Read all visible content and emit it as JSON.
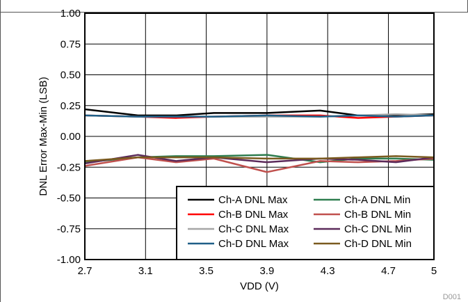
{
  "chart_data": {
    "type": "line",
    "xlabel": "VDD (V)",
    "ylabel": "DNL Error Max-Min (LSB)",
    "xlim": [
      2.7,
      5.0
    ],
    "ylim": [
      -1.0,
      1.0
    ],
    "xticks": [
      2.7,
      3.1,
      3.5,
      3.9,
      4.3,
      4.7,
      5
    ],
    "xtick_labels": [
      "2.7",
      "3.1",
      "3.5",
      "3.9",
      "4.3",
      "4.7",
      "5"
    ],
    "yticks": [
      -1.0,
      -0.75,
      -0.5,
      -0.25,
      0.0,
      0.25,
      0.5,
      0.75,
      1.0
    ],
    "ytick_labels": [
      "-1.00",
      "-0.75",
      "-0.50",
      "-0.25",
      "0.00",
      "0.25",
      "0.50",
      "0.75",
      "1.00"
    ],
    "grid": true,
    "legend_position": "bottom-right",
    "legend_columns": 2,
    "annotation": "D001",
    "x": [
      2.7,
      3.05,
      3.3,
      3.55,
      3.9,
      4.25,
      4.5,
      4.75,
      5.0
    ],
    "series": [
      {
        "name": "Ch-A DNL Max",
        "color": "#000000",
        "values": [
          0.22,
          0.17,
          0.17,
          0.19,
          0.19,
          0.21,
          0.17,
          0.17,
          0.18
        ]
      },
      {
        "name": "Ch-B DNL Max",
        "color": "#ff0000",
        "values": [
          0.17,
          0.16,
          0.15,
          0.16,
          0.17,
          0.17,
          0.15,
          0.16,
          0.17
        ]
      },
      {
        "name": "Ch-C DNL Max",
        "color": "#a6a6a6",
        "values": [
          0.17,
          0.16,
          0.16,
          0.16,
          0.16,
          0.16,
          0.17,
          0.18,
          0.17
        ]
      },
      {
        "name": "Ch-D DNL Max",
        "color": "#1f5f87",
        "values": [
          0.17,
          0.16,
          0.16,
          0.16,
          0.17,
          0.16,
          0.17,
          0.16,
          0.17
        ]
      },
      {
        "name": "Ch-A DNL Min",
        "color": "#2e7d4f",
        "values": [
          -0.21,
          -0.17,
          -0.16,
          -0.16,
          -0.15,
          -0.21,
          -0.18,
          -0.18,
          -0.19
        ]
      },
      {
        "name": "Ch-B DNL Min",
        "color": "#c0504d",
        "values": [
          -0.24,
          -0.17,
          -0.21,
          -0.18,
          -0.29,
          -0.2,
          -0.21,
          -0.2,
          -0.18
        ]
      },
      {
        "name": "Ch-C DNL Min",
        "color": "#5b2a5a",
        "values": [
          -0.22,
          -0.15,
          -0.2,
          -0.17,
          -0.21,
          -0.18,
          -0.19,
          -0.21,
          -0.17
        ]
      },
      {
        "name": "Ch-D DNL Min",
        "color": "#7a5a1f",
        "values": [
          -0.2,
          -0.17,
          -0.17,
          -0.17,
          -0.18,
          -0.18,
          -0.17,
          -0.16,
          -0.17
        ]
      }
    ]
  }
}
